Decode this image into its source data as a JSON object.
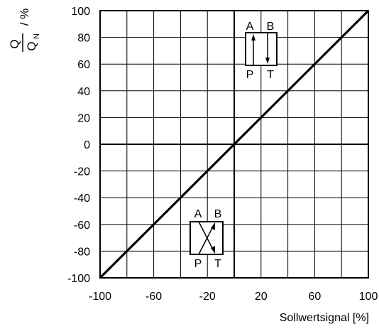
{
  "chart_data": {
    "type": "line",
    "x": [
      -100,
      100
    ],
    "series": [
      {
        "values": [
          -100,
          100
        ],
        "color": "#000000"
      }
    ],
    "xlim": [
      -100,
      100
    ],
    "ylim": [
      -100,
      100
    ],
    "xticks": [
      -100,
      -60,
      -20,
      20,
      60,
      100
    ],
    "yticks": [
      -100,
      -80,
      -60,
      -40,
      -20,
      0,
      20,
      40,
      60,
      80,
      100
    ],
    "xlabel": "Sollwertsignal [%]",
    "ylabel": {
      "numerator": "Q",
      "denominator_main": "Q",
      "denominator_sub": "N",
      "unit": "/ %"
    },
    "grid": true,
    "annotations": {
      "valve_parallel": {
        "ports": [
          "A",
          "B",
          "P",
          "T"
        ],
        "symbol": "parallel-flow-valve"
      },
      "valve_crossed": {
        "ports": [
          "A",
          "B",
          "P",
          "T"
        ],
        "symbol": "crossed-flow-valve"
      }
    }
  }
}
